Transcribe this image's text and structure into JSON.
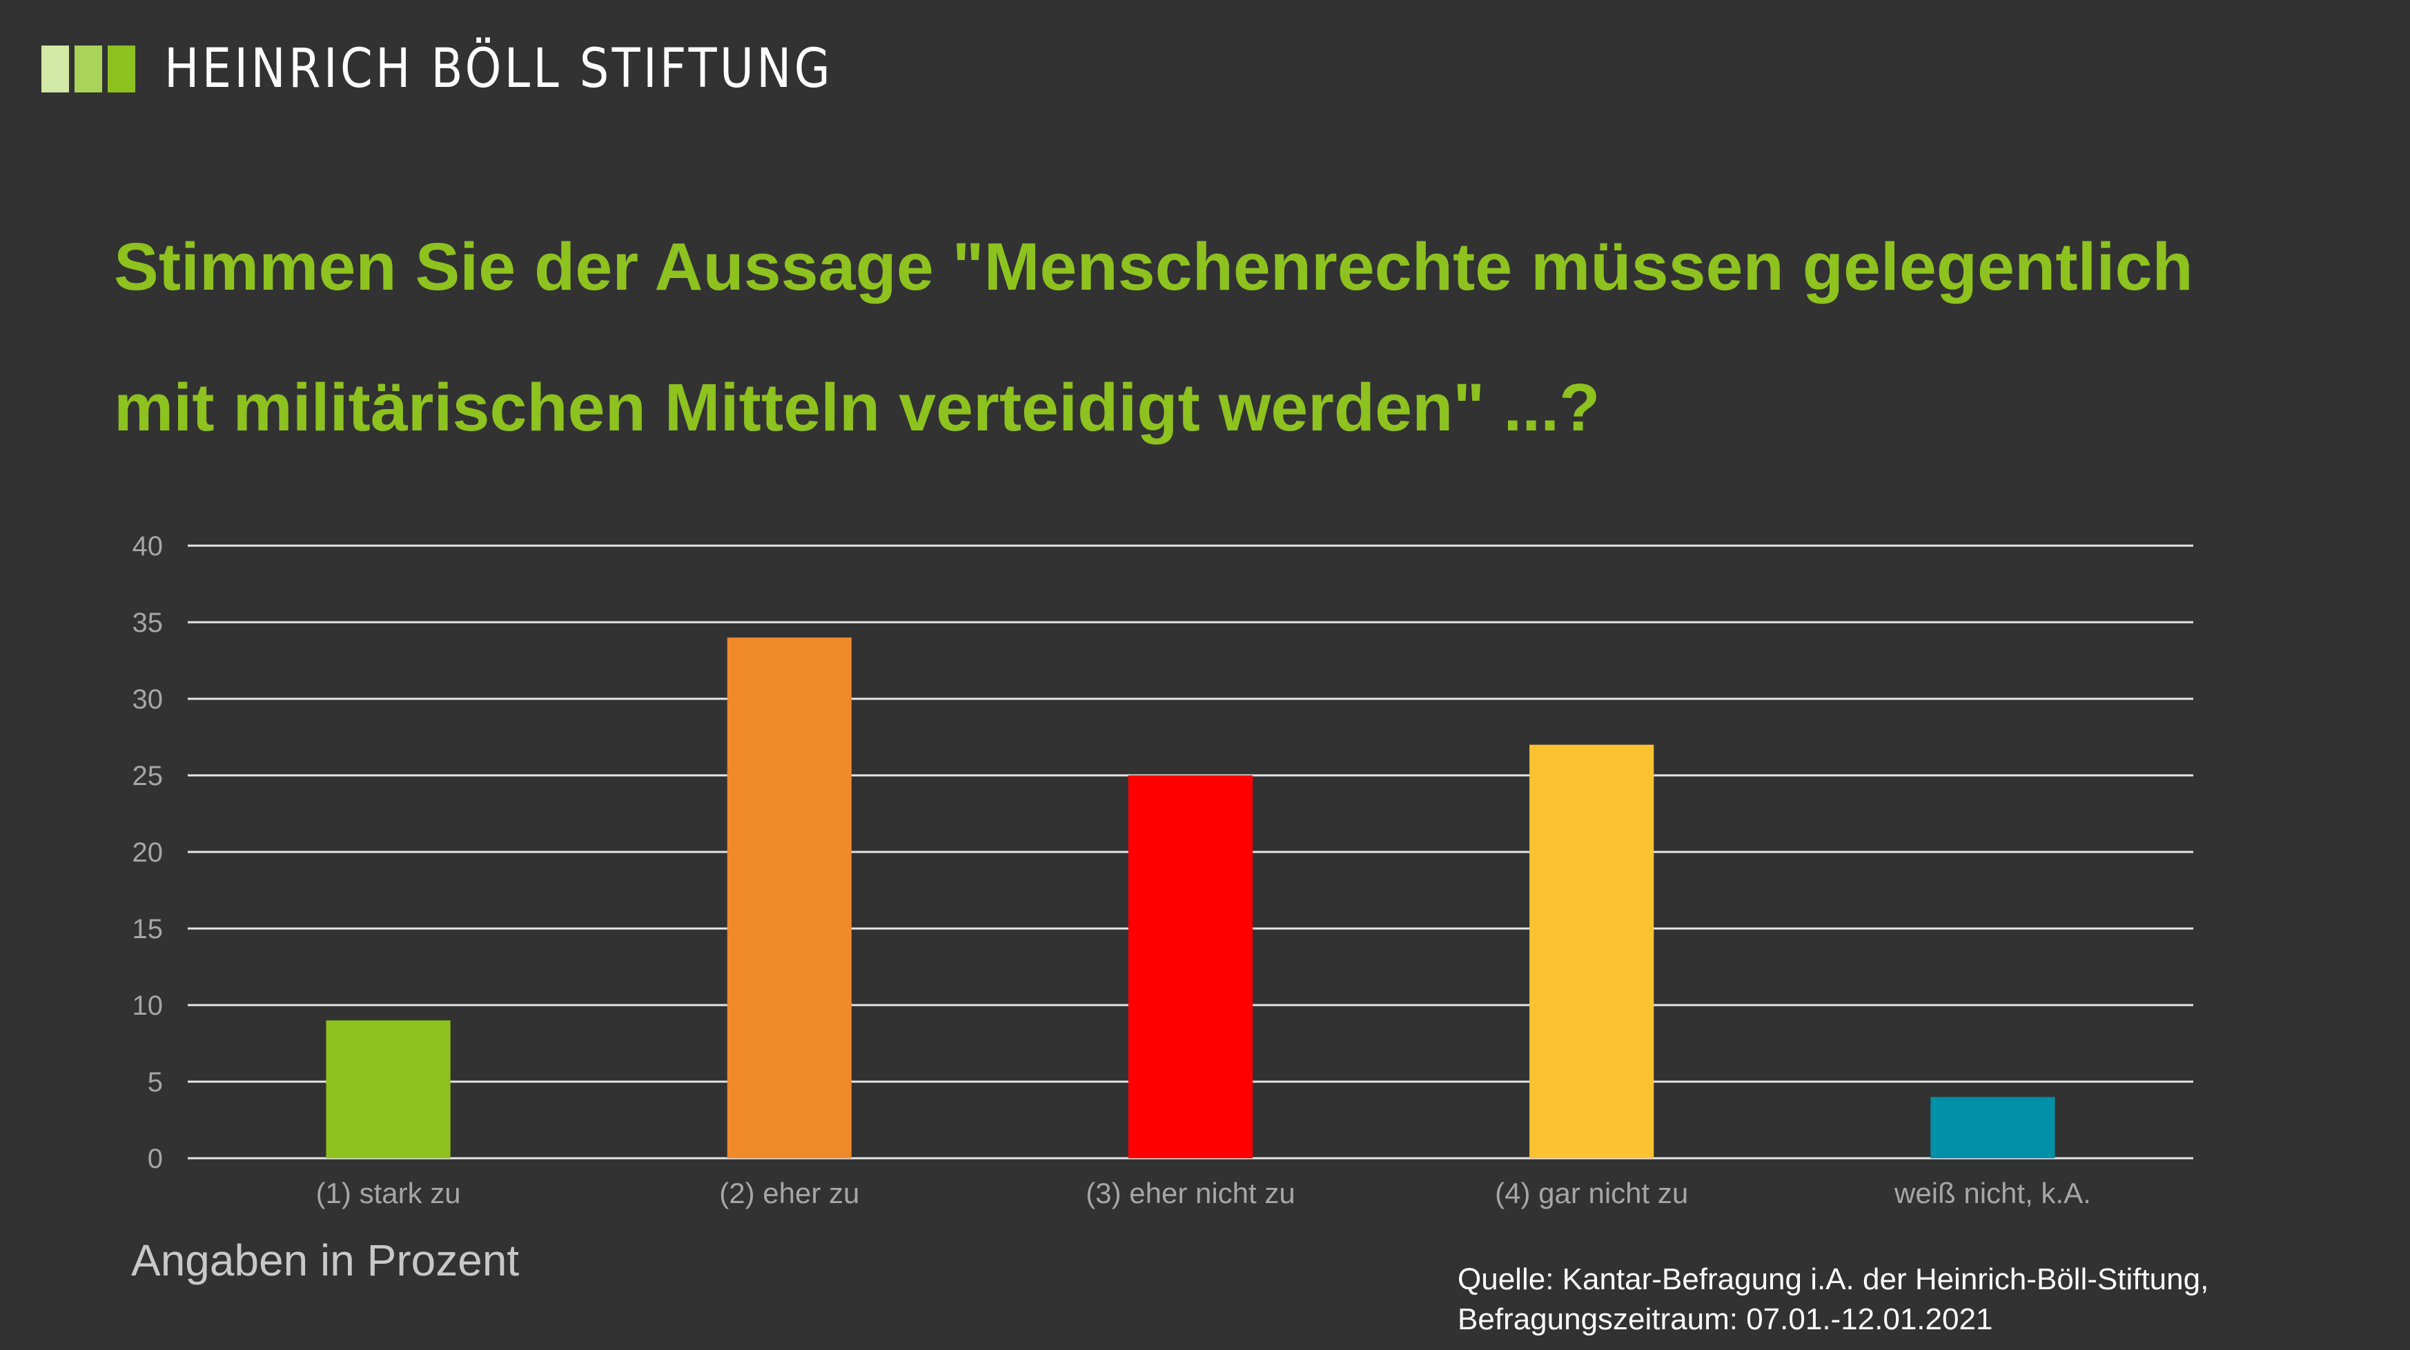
{
  "logo": {
    "text": "HEINRICH BÖLL STIFTUNG",
    "square_colors": [
      "#d2e8a6",
      "#a9d45a",
      "#8dc21f"
    ]
  },
  "note": "Angaben in Prozent",
  "source": {
    "line1": "Quelle: Kantar-Befragung i.A. der Heinrich-Böll-Stiftung,",
    "line2": "Befragungszeitraum: 07.01.-12.01.2021"
  },
  "colors": {
    "background": "#323232",
    "title": "#8dc21f",
    "grid": "#e6e6e6",
    "tick_text": "#a6a6a6"
  },
  "chart_data": {
    "type": "bar",
    "title": "Stimmen Sie der Aussage \"Menschenrechte müssen gelegentlich mit militärischen Mitteln verteidigt werden\" ...?",
    "categories": [
      "(1) stark zu",
      "(2) eher zu",
      "(3) eher nicht zu",
      "(4) gar nicht zu",
      "weiß nicht, k.A."
    ],
    "values": [
      9,
      34,
      25,
      27,
      4
    ],
    "bar_colors": [
      "#8dc21f",
      "#f0892a",
      "#ff0000",
      "#fdc230",
      "#0090a8"
    ],
    "ylim": [
      0,
      40
    ],
    "yticks": [
      0,
      5,
      10,
      15,
      20,
      25,
      30,
      35,
      40
    ],
    "grid": true,
    "legend": "none",
    "xlabel": "",
    "ylabel": ""
  }
}
